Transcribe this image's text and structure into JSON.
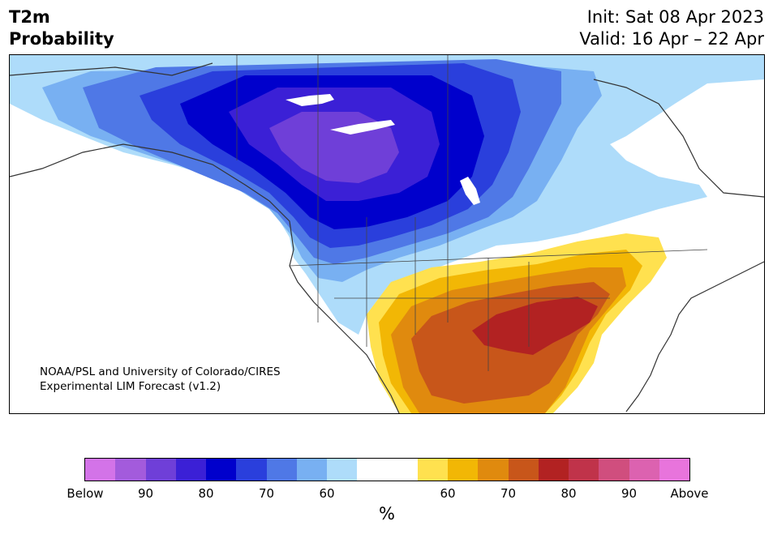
{
  "header": {
    "title_line1": "T2m",
    "title_line2": "Probability",
    "init": "Init: Sat 08 Apr 2023",
    "valid": "Valid: 16 Apr – 22 Apr"
  },
  "map": {
    "credit_line1": "NOAA/PSL and University of Colorado/CIRES",
    "credit_line2": "Experimental LIM Forecast (v1.2)"
  },
  "colorbar": {
    "colors": [
      "#d373e8",
      "#a35bdc",
      "#6f3fd8",
      "#3b20d6",
      "#0000cc",
      "#2a3fdc",
      "#4f78e6",
      "#78b0f2",
      "#aedcfa",
      "#ffffff",
      "#ffffff",
      "#ffe14f",
      "#f2b705",
      "#e08a0e",
      "#c8561a",
      "#b22222",
      "#c0334a",
      "#d04e7e",
      "#dc62b0",
      "#e874dc"
    ],
    "ticks": [
      "Below",
      "90",
      "80",
      "70",
      "60",
      "60",
      "70",
      "80",
      "90",
      "Above"
    ],
    "unit": "%"
  }
}
